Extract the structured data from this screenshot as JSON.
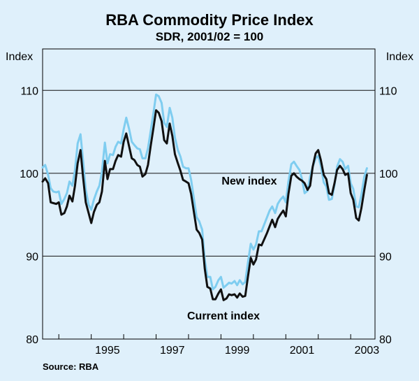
{
  "chart_data": {
    "type": "line",
    "title": "RBA Commodity Price Index",
    "subtitle": "SDR, 2001/02 = 100",
    "ylabel_left": "Index",
    "ylabel_right": "Index",
    "ylim": [
      80,
      115
    ],
    "yticks": [
      80,
      90,
      100,
      110
    ],
    "xlim": [
      1993.5,
      2003.75
    ],
    "xticks": [
      1995,
      1997,
      1999,
      2001,
      2003
    ],
    "source": "Source: RBA",
    "annotations": {
      "new": "New index",
      "current": "Current index"
    },
    "series": [
      {
        "name": "Current index",
        "color": "#111111",
        "points": [
          [
            1993.5,
            99.0
          ],
          [
            1993.58,
            99.4
          ],
          [
            1993.67,
            98.8
          ],
          [
            1993.75,
            96.5
          ],
          [
            1993.83,
            96.4
          ],
          [
            1993.92,
            96.3
          ],
          [
            1994.0,
            96.5
          ],
          [
            1994.08,
            95.0
          ],
          [
            1994.17,
            95.2
          ],
          [
            1994.25,
            96.0
          ],
          [
            1994.33,
            97.3
          ],
          [
            1994.42,
            96.6
          ],
          [
            1994.5,
            98.5
          ],
          [
            1994.58,
            101.2
          ],
          [
            1994.67,
            102.8
          ],
          [
            1994.75,
            99.5
          ],
          [
            1994.83,
            96.5
          ],
          [
            1994.92,
            95.2
          ],
          [
            1995.0,
            94.0
          ],
          [
            1995.08,
            95.3
          ],
          [
            1995.17,
            96.2
          ],
          [
            1995.25,
            96.5
          ],
          [
            1995.33,
            97.8
          ],
          [
            1995.42,
            101.5
          ],
          [
            1995.5,
            99.3
          ],
          [
            1995.58,
            100.5
          ],
          [
            1995.67,
            100.5
          ],
          [
            1995.75,
            101.5
          ],
          [
            1995.83,
            102.2
          ],
          [
            1995.92,
            102.0
          ],
          [
            1996.0,
            103.8
          ],
          [
            1996.08,
            104.8
          ],
          [
            1996.17,
            103.2
          ],
          [
            1996.25,
            101.8
          ],
          [
            1996.33,
            101.6
          ],
          [
            1996.42,
            101.0
          ],
          [
            1996.5,
            100.8
          ],
          [
            1996.58,
            99.6
          ],
          [
            1996.67,
            99.9
          ],
          [
            1996.75,
            101.0
          ],
          [
            1996.83,
            103.2
          ],
          [
            1996.92,
            105.5
          ],
          [
            1997.0,
            107.6
          ],
          [
            1997.08,
            107.3
          ],
          [
            1997.17,
            106.3
          ],
          [
            1997.25,
            104.0
          ],
          [
            1997.33,
            103.6
          ],
          [
            1997.42,
            106.0
          ],
          [
            1997.5,
            104.5
          ],
          [
            1997.58,
            102.3
          ],
          [
            1997.67,
            101.2
          ],
          [
            1997.75,
            100.3
          ],
          [
            1997.83,
            99.2
          ],
          [
            1997.92,
            99.0
          ],
          [
            1998.0,
            98.8
          ],
          [
            1998.08,
            97.5
          ],
          [
            1998.17,
            95.2
          ],
          [
            1998.25,
            93.2
          ],
          [
            1998.33,
            92.8
          ],
          [
            1998.42,
            92.0
          ],
          [
            1998.5,
            88.5
          ],
          [
            1998.58,
            86.3
          ],
          [
            1998.67,
            86.1
          ],
          [
            1998.75,
            84.8
          ],
          [
            1998.83,
            84.8
          ],
          [
            1998.92,
            85.5
          ],
          [
            1999.0,
            86.0
          ],
          [
            1999.08,
            84.7
          ],
          [
            1999.17,
            84.9
          ],
          [
            1999.25,
            85.4
          ],
          [
            1999.33,
            85.3
          ],
          [
            1999.42,
            85.4
          ],
          [
            1999.5,
            85.0
          ],
          [
            1999.58,
            85.5
          ],
          [
            1999.67,
            85.1
          ],
          [
            1999.75,
            85.2
          ],
          [
            1999.83,
            87.5
          ],
          [
            1999.92,
            89.8
          ],
          [
            2000.0,
            89.0
          ],
          [
            2000.08,
            89.6
          ],
          [
            2000.17,
            91.4
          ],
          [
            2000.25,
            91.3
          ],
          [
            2000.33,
            92.0
          ],
          [
            2000.42,
            92.8
          ],
          [
            2000.5,
            93.6
          ],
          [
            2000.58,
            94.4
          ],
          [
            2000.67,
            93.5
          ],
          [
            2000.75,
            94.5
          ],
          [
            2000.83,
            95.0
          ],
          [
            2000.92,
            95.5
          ],
          [
            2001.0,
            94.8
          ],
          [
            2001.08,
            97.5
          ],
          [
            2001.17,
            99.7
          ],
          [
            2001.25,
            100.0
          ],
          [
            2001.33,
            99.6
          ],
          [
            2001.42,
            99.3
          ],
          [
            2001.5,
            99.1
          ],
          [
            2001.58,
            98.8
          ],
          [
            2001.67,
            98.0
          ],
          [
            2001.75,
            98.5
          ],
          [
            2001.83,
            100.8
          ],
          [
            2001.92,
            102.4
          ],
          [
            2002.0,
            102.8
          ],
          [
            2002.08,
            101.6
          ],
          [
            2002.17,
            99.8
          ],
          [
            2002.25,
            99.3
          ],
          [
            2002.33,
            97.6
          ],
          [
            2002.42,
            97.4
          ],
          [
            2002.5,
            98.8
          ],
          [
            2002.58,
            100.4
          ],
          [
            2002.67,
            100.9
          ],
          [
            2002.75,
            100.5
          ],
          [
            2002.83,
            99.8
          ],
          [
            2002.92,
            100.0
          ],
          [
            2003.0,
            97.6
          ],
          [
            2003.08,
            96.8
          ],
          [
            2003.17,
            94.6
          ],
          [
            2003.25,
            94.3
          ],
          [
            2003.33,
            95.8
          ],
          [
            2003.42,
            98.0
          ],
          [
            2003.5,
            99.8
          ]
        ]
      },
      {
        "name": "New index",
        "color": "#7fcdf0",
        "points": [
          [
            1993.5,
            100.7
          ],
          [
            1993.58,
            101.0
          ],
          [
            1993.67,
            99.8
          ],
          [
            1993.75,
            98.2
          ],
          [
            1993.83,
            97.8
          ],
          [
            1993.92,
            97.7
          ],
          [
            1994.0,
            97.8
          ],
          [
            1994.08,
            96.3
          ],
          [
            1994.17,
            96.9
          ],
          [
            1994.25,
            97.6
          ],
          [
            1994.33,
            99.0
          ],
          [
            1994.42,
            98.5
          ],
          [
            1994.5,
            100.4
          ],
          [
            1994.58,
            103.6
          ],
          [
            1994.67,
            104.7
          ],
          [
            1994.75,
            101.5
          ],
          [
            1994.83,
            98.0
          ],
          [
            1994.92,
            96.2
          ],
          [
            1995.0,
            95.6
          ],
          [
            1995.08,
            96.8
          ],
          [
            1995.17,
            97.8
          ],
          [
            1995.25,
            98.5
          ],
          [
            1995.33,
            100.2
          ],
          [
            1995.42,
            103.7
          ],
          [
            1995.5,
            101.2
          ],
          [
            1995.58,
            102.3
          ],
          [
            1995.67,
            102.2
          ],
          [
            1995.75,
            103.2
          ],
          [
            1995.83,
            103.8
          ],
          [
            1995.92,
            103.6
          ],
          [
            1996.0,
            105.3
          ],
          [
            1996.08,
            106.7
          ],
          [
            1996.17,
            105.3
          ],
          [
            1996.25,
            103.8
          ],
          [
            1996.33,
            103.4
          ],
          [
            1996.42,
            103.0
          ],
          [
            1996.5,
            102.9
          ],
          [
            1996.58,
            101.8
          ],
          [
            1996.67,
            101.8
          ],
          [
            1996.75,
            103.0
          ],
          [
            1996.83,
            105.0
          ],
          [
            1996.92,
            107.3
          ],
          [
            1997.0,
            109.5
          ],
          [
            1997.08,
            109.3
          ],
          [
            1997.17,
            108.5
          ],
          [
            1997.25,
            106.1
          ],
          [
            1997.33,
            105.6
          ],
          [
            1997.42,
            107.9
          ],
          [
            1997.5,
            106.7
          ],
          [
            1997.58,
            104.3
          ],
          [
            1997.67,
            102.8
          ],
          [
            1997.75,
            102.0
          ],
          [
            1997.83,
            100.8
          ],
          [
            1997.92,
            100.6
          ],
          [
            1998.0,
            100.6
          ],
          [
            1998.08,
            99.2
          ],
          [
            1998.17,
            96.8
          ],
          [
            1998.25,
            94.7
          ],
          [
            1998.33,
            94.2
          ],
          [
            1998.42,
            93.2
          ],
          [
            1998.5,
            89.6
          ],
          [
            1998.58,
            87.5
          ],
          [
            1998.67,
            87.5
          ],
          [
            1998.75,
            86.0
          ],
          [
            1998.83,
            86.3
          ],
          [
            1998.92,
            87.1
          ],
          [
            1999.0,
            87.5
          ],
          [
            1999.08,
            86.2
          ],
          [
            1999.17,
            86.5
          ],
          [
            1999.25,
            86.8
          ],
          [
            1999.33,
            86.7
          ],
          [
            1999.42,
            87.0
          ],
          [
            1999.5,
            86.5
          ],
          [
            1999.58,
            87.1
          ],
          [
            1999.67,
            86.6
          ],
          [
            1999.75,
            86.9
          ],
          [
            1999.83,
            89.2
          ],
          [
            1999.92,
            91.5
          ],
          [
            2000.0,
            90.8
          ],
          [
            2000.08,
            91.4
          ],
          [
            2000.17,
            93.0
          ],
          [
            2000.25,
            93.0
          ],
          [
            2000.33,
            93.8
          ],
          [
            2000.42,
            94.7
          ],
          [
            2000.5,
            95.5
          ],
          [
            2000.58,
            96.0
          ],
          [
            2000.67,
            95.2
          ],
          [
            2000.75,
            96.3
          ],
          [
            2000.83,
            96.8
          ],
          [
            2000.92,
            97.2
          ],
          [
            2001.0,
            96.5
          ],
          [
            2001.08,
            99.0
          ],
          [
            2001.17,
            101.1
          ],
          [
            2001.25,
            101.4
          ],
          [
            2001.33,
            100.9
          ],
          [
            2001.42,
            100.4
          ],
          [
            2001.5,
            99.3
          ],
          [
            2001.58,
            97.6
          ],
          [
            2001.67,
            97.9
          ],
          [
            2001.75,
            99.6
          ],
          [
            2001.83,
            100.8
          ],
          [
            2001.92,
            101.8
          ],
          [
            2002.0,
            102.1
          ],
          [
            2002.08,
            100.9
          ],
          [
            2002.17,
            98.9
          ],
          [
            2002.25,
            98.4
          ],
          [
            2002.33,
            96.8
          ],
          [
            2002.42,
            96.9
          ],
          [
            2002.5,
            98.6
          ],
          [
            2002.58,
            100.8
          ],
          [
            2002.67,
            101.7
          ],
          [
            2002.75,
            101.4
          ],
          [
            2002.83,
            100.5
          ],
          [
            2002.92,
            100.9
          ],
          [
            2003.0,
            98.8
          ],
          [
            2003.08,
            98.1
          ],
          [
            2003.17,
            96.0
          ],
          [
            2003.25,
            95.9
          ],
          [
            2003.33,
            97.4
          ],
          [
            2003.42,
            99.6
          ],
          [
            2003.5,
            100.6
          ]
        ]
      }
    ]
  }
}
